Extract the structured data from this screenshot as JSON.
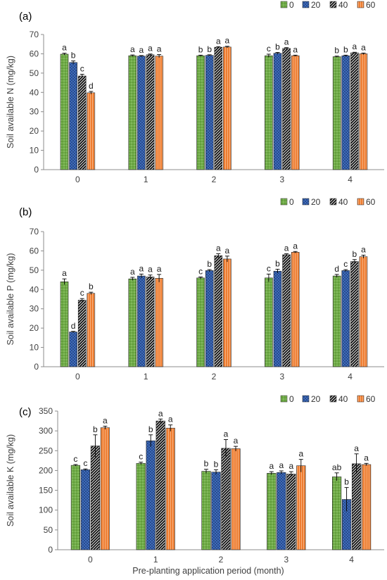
{
  "figure": {
    "xlabel": "Pre-planting application period (month)"
  },
  "chart_data": [
    {
      "type": "bar",
      "panel_label": "(a)",
      "ylabel": "Soil available  N (mg/kg)",
      "ylim": [
        0,
        70
      ],
      "yticks": [
        0,
        10,
        20,
        30,
        40,
        50,
        60,
        70
      ],
      "categories": [
        "0",
        "1",
        "2",
        "3",
        "4"
      ],
      "legend_position": "top-right",
      "series": [
        {
          "name": "0",
          "color": "#70ad47",
          "pattern": "dots",
          "values": [
            59.8,
            59.0,
            59.0,
            59.0,
            58.5
          ],
          "errors": [
            0.5,
            0.4,
            0.3,
            0.8,
            0.3
          ],
          "letters": [
            "a",
            "a",
            "b",
            "c",
            "b"
          ]
        },
        {
          "name": "20",
          "color": "#4472c4",
          "pattern": "crosshatch",
          "values": [
            55.5,
            58.8,
            59.2,
            60.3,
            59.0
          ],
          "errors": [
            0.8,
            0.3,
            0.3,
            0.4,
            0.3
          ],
          "letters": [
            "b",
            "a",
            "b",
            "b",
            "b"
          ]
        },
        {
          "name": "40",
          "color": "#1f1f1f",
          "pattern": "diagonal",
          "values": [
            48.5,
            59.5,
            63.4,
            62.8,
            60.5
          ],
          "errors": [
            0.9,
            0.4,
            0.3,
            0.4,
            0.3
          ],
          "letters": [
            "c",
            "a",
            "a",
            "a",
            "a"
          ]
        },
        {
          "name": "60",
          "color": "#ed7d31",
          "pattern": "vertical",
          "values": [
            39.8,
            58.8,
            63.5,
            59.0,
            60.0
          ],
          "errors": [
            0.7,
            0.8,
            0.4,
            0.3,
            0.4
          ],
          "letters": [
            "d",
            "a",
            "a",
            "a",
            "a"
          ]
        }
      ]
    },
    {
      "type": "bar",
      "panel_label": "(b)",
      "ylabel": "Soil available  P (mg/kg)",
      "ylim": [
        0,
        70
      ],
      "yticks": [
        0,
        10,
        20,
        30,
        40,
        50,
        60,
        70
      ],
      "categories": [
        "0",
        "1",
        "2",
        "3",
        "4"
      ],
      "legend_position": "top-right",
      "series": [
        {
          "name": "0",
          "color": "#70ad47",
          "pattern": "dots",
          "values": [
            44.0,
            45.5,
            46.0,
            46.0,
            47.0
          ],
          "errors": [
            1.5,
            0.8,
            0.5,
            2.0,
            0.8
          ],
          "letters": [
            "a",
            "a",
            "c",
            "c",
            "d"
          ]
        },
        {
          "name": "20",
          "color": "#4472c4",
          "pattern": "crosshatch",
          "values": [
            18.0,
            47.0,
            49.8,
            49.5,
            49.8
          ],
          "errors": [
            0.3,
            1.0,
            0.5,
            1.0,
            0.5
          ],
          "letters": [
            "d",
            "a",
            "b",
            "b",
            "c"
          ]
        },
        {
          "name": "40",
          "color": "#1f1f1f",
          "pattern": "diagonal",
          "values": [
            34.5,
            46.5,
            57.5,
            58.0,
            54.5
          ],
          "errors": [
            0.8,
            1.0,
            1.0,
            0.5,
            1.0
          ],
          "letters": [
            "c",
            "a",
            "a",
            "a",
            "b"
          ]
        },
        {
          "name": "60",
          "color": "#ed7d31",
          "pattern": "vertical",
          "values": [
            38.0,
            45.8,
            55.8,
            59.3,
            57.0
          ],
          "errors": [
            0.6,
            2.0,
            1.5,
            0.4,
            0.8
          ],
          "letters": [
            "b",
            "a",
            "a",
            "a",
            "a"
          ]
        }
      ]
    },
    {
      "type": "bar",
      "panel_label": "(c)",
      "ylabel": "Soil available  K (mg/kg)",
      "ylim": [
        0,
        350
      ],
      "yticks": [
        0,
        50,
        100,
        150,
        200,
        250,
        300,
        350
      ],
      "categories": [
        "0",
        "1",
        "2",
        "3",
        "4"
      ],
      "legend_position": "top-right",
      "series": [
        {
          "name": "0",
          "color": "#70ad47",
          "pattern": "dots",
          "values": [
            213,
            218,
            198,
            193,
            184
          ],
          "errors": [
            2,
            3,
            5,
            4,
            10
          ],
          "letters": [
            "c",
            "c",
            "b",
            "a",
            "ab"
          ]
        },
        {
          "name": "20",
          "color": "#4472c4",
          "pattern": "crosshatch",
          "values": [
            202,
            275,
            196,
            195,
            127
          ],
          "errors": [
            2,
            15,
            6,
            4,
            30
          ],
          "letters": [
            "c",
            "b",
            "b",
            "a",
            "b"
          ]
        },
        {
          "name": "40",
          "color": "#1f1f1f",
          "pattern": "diagonal",
          "values": [
            262,
            325,
            256,
            191,
            217
          ],
          "errors": [
            28,
            5,
            22,
            6,
            25
          ],
          "letters": [
            "b",
            "a",
            "a",
            "a",
            "a"
          ]
        },
        {
          "name": "60",
          "color": "#ed7d31",
          "pattern": "vertical",
          "values": [
            308,
            307,
            255,
            212,
            215
          ],
          "errors": [
            4,
            8,
            6,
            16,
            3
          ],
          "letters": [
            "a",
            "a",
            "a",
            "a",
            "a"
          ]
        }
      ]
    }
  ]
}
